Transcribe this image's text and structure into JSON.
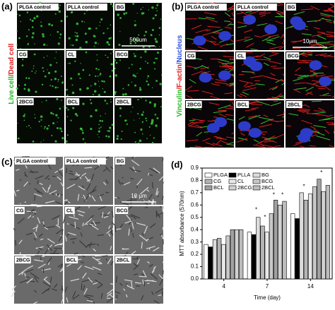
{
  "panels": [
    {
      "label": "(a)",
      "side_label": [
        "Live cell",
        "/Dead cell"
      ],
      "scale_bar": "500um",
      "images": [
        "PLGA control",
        "PLLA control",
        "BG",
        "CG",
        "CL",
        "BCG",
        "2BCG",
        "BCL",
        "2BCL"
      ]
    },
    {
      "label": "(b)",
      "side_label": [
        "Vinculin",
        "/F-actin",
        "/Nucleus"
      ],
      "scale_bar": "10μm",
      "images": [
        "PLGA control",
        "PLLA control",
        "BG",
        "CG",
        "CL",
        "BCG",
        "2BCG",
        "BCL",
        "2BCL"
      ]
    },
    {
      "label": "(c)",
      "scale_bar": "10 μm",
      "images": [
        "PLGA control",
        "PLLA control",
        "BG",
        "CG",
        "CL",
        "BCG",
        "2BCG",
        "BCL",
        "2BCL"
      ]
    }
  ],
  "chart_data": {
    "type": "bar",
    "panel_label": "(d)",
    "x_label": "Time (day)",
    "y_label": "MTT absorbance (570nm)",
    "categories": [
      "4",
      "7",
      "14"
    ],
    "series": [
      {
        "name": "PLGA",
        "color": "#ffffff",
        "values": [
          0.28,
          0.38,
          0.53
        ]
      },
      {
        "name": "PLLA",
        "color": "#000000",
        "values": [
          0.26,
          0.36,
          0.49
        ]
      },
      {
        "name": "BG",
        "color": "#dcdcdc",
        "values": [
          0.32,
          0.5,
          0.7
        ]
      },
      {
        "name": "CG",
        "color": "#b4b4b4",
        "values": [
          0.33,
          0.43,
          0.64
        ]
      },
      {
        "name": "CL",
        "color": "#e8e8e8",
        "values": [
          0.28,
          0.38,
          0.69
        ]
      },
      {
        "name": "BCG",
        "color": "#c8c8c8",
        "values": [
          0.35,
          0.53,
          0.75
        ]
      },
      {
        "name": "BCL",
        "color": "#a0a0a0",
        "values": [
          0.4,
          0.64,
          0.81
        ]
      },
      {
        "name": "2BCG",
        "color": "#d0d0d0",
        "values": [
          0.4,
          0.6,
          0.71
        ]
      },
      {
        "name": "2BCL",
        "color": "#bcbcbc",
        "values": [
          0.4,
          0.63,
          0.76
        ]
      }
    ],
    "ylim": [
      0,
      0.9
    ],
    "yticks": [
      {
        "value": 0,
        "label": "0.0"
      },
      0.1,
      0.2,
      0.3,
      0.4,
      0.5,
      0.6,
      0.7,
      0.8,
      0.9
    ],
    "annotations": [
      "*",
      "*",
      "*",
      "*",
      "*",
      "*"
    ]
  }
}
